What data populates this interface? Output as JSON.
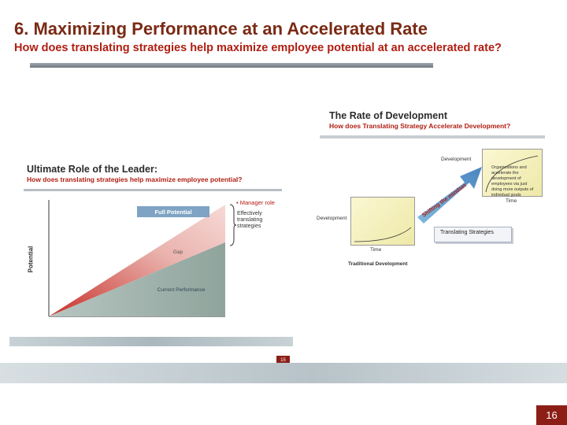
{
  "slide": {
    "title": "6.  Maximizing Performance at an Accelerated Rate",
    "subtitle": "How does translating strategies help maximize employee potential at an accelerated rate?",
    "page_number": "16"
  },
  "rate_image": {
    "title": "The Rate of Development",
    "subtitle": "How does Translating Strategy Accelerate Development?",
    "development_label": "Development",
    "development_box_text": "Organizations and accelerate the development of employees via just doing more outputs of individual goals",
    "time_label": "Time",
    "developmental_label": "Development",
    "time_label_2": "Time",
    "traditional_label": "Traditional Development",
    "arrow_text": "Shifting the mindset",
    "translating_label": "Translating Strategies"
  },
  "leader_image": {
    "title": "Ultimate Role of the Leader:",
    "subtitle": "How does translating strategies help maximize employee potential?",
    "manager_role": "• Manager role",
    "effective_text": "Effectively translating strategies",
    "axis_label": "Potential",
    "full_potential": "Full Potential",
    "gap": "Gap",
    "current_performance": "Current Performance",
    "inner_page_number": "15"
  },
  "colors": {
    "title": "#7a2a14",
    "accent_red": "#b01e12",
    "page_badge": "#8c1e16"
  }
}
